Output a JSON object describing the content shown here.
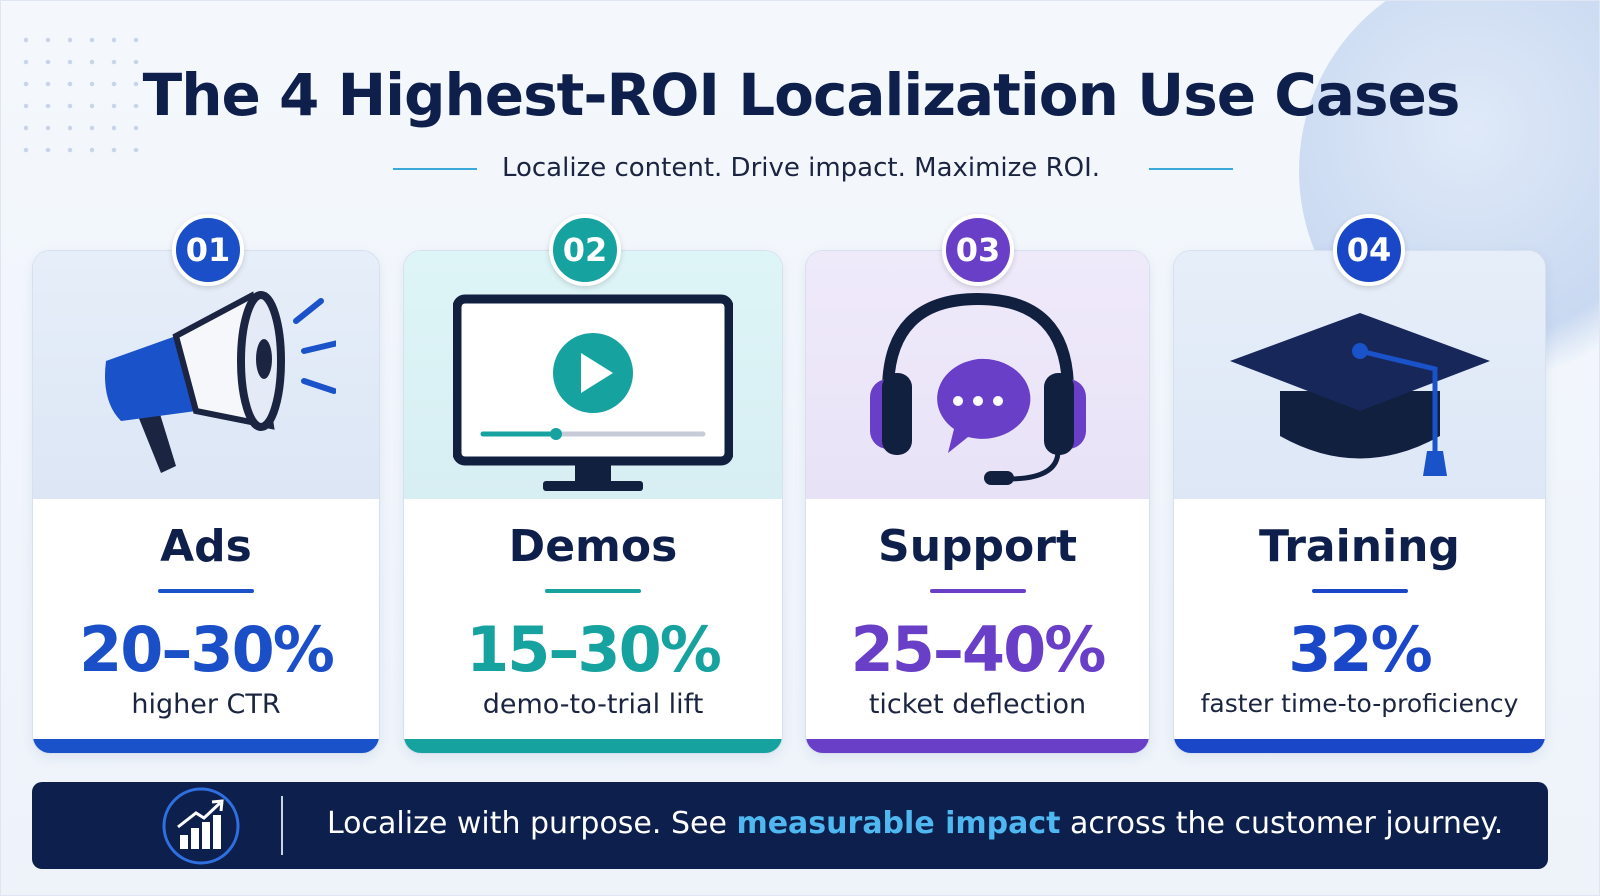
{
  "header": {
    "title": "The 4 Highest-ROI Localization Use Cases",
    "subtitle": "Localize content. Drive impact. Maximize ROI."
  },
  "cards": [
    {
      "number": "01",
      "title": "Ads",
      "stat": "20–30%",
      "caption": "higher CTR"
    },
    {
      "number": "02",
      "title": "Demos",
      "stat": "15–30%",
      "caption": "demo-to-trial lift"
    },
    {
      "number": "03",
      "title": "Support",
      "stat": "25–40%",
      "caption": "ticket deflection"
    },
    {
      "number": "04",
      "title": "Training",
      "stat": "32%",
      "caption": "faster time-to-proficiency"
    }
  ],
  "footer": {
    "text_before": "Localize with purpose. See ",
    "highlight": "measurable impact",
    "text_after": " across the customer journey."
  }
}
